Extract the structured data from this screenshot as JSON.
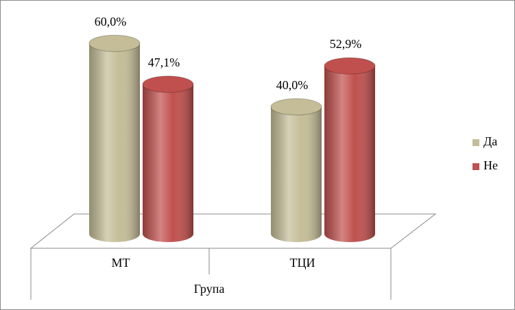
{
  "chart_data": {
    "type": "bar3d",
    "x_label": "Група",
    "categories": [
      "МТ",
      "ТЦИ"
    ],
    "series": [
      {
        "name": "Да",
        "color": "#c4bd97",
        "values": [
          60.0,
          40.0
        ],
        "value_labels": [
          "60,0%",
          "40,0%"
        ]
      },
      {
        "name": "Не",
        "color": "#c0504d",
        "values": [
          47.1,
          52.9
        ],
        "value_labels": [
          "47,1%",
          "52,9%"
        ]
      }
    ],
    "legend": "right"
  }
}
